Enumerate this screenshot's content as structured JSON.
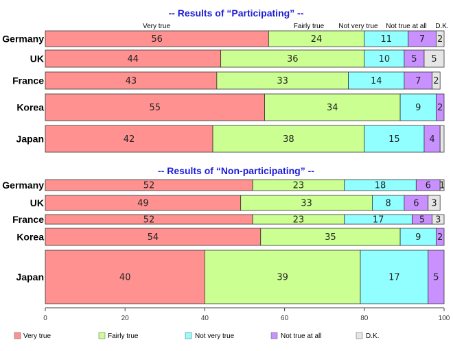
{
  "chart_data": {
    "type": "bar",
    "orientation": "horizontal",
    "stacked": true,
    "xlim": [
      0,
      100
    ],
    "x_ticks": [
      0,
      20,
      40,
      60,
      80,
      100
    ],
    "grid": false,
    "legend_placement": "bottom",
    "categories_order": [
      "Very true",
      "Fairly true",
      "Not very true",
      "Not true at all",
      "D.K."
    ],
    "colors": [
      "#ff9191",
      "#ccff91",
      "#91ffff",
      "#c891ff",
      "#e6e6e6"
    ],
    "column_headers": [
      "Very true",
      "Fairly true",
      "Not very true",
      "Not true at all",
      "D.K."
    ],
    "panels": [
      {
        "title": "-- Results of “Participating” --",
        "rows": [
          {
            "label": "Germany",
            "values": [
              56,
              24,
              11,
              7,
              2
            ]
          },
          {
            "label": "UK",
            "values": [
              44,
              36,
              10,
              5,
              5
            ]
          },
          {
            "label": "France",
            "values": [
              43,
              33,
              14,
              7,
              2
            ]
          },
          {
            "label": "Korea",
            "values": [
              55,
              34,
              9,
              2,
              0
            ]
          },
          {
            "label": "Japan",
            "values": [
              42,
              38,
              15,
              4,
              1
            ]
          }
        ],
        "shown_labels": [
          [
            "56",
            "24",
            "11",
            "7",
            "2"
          ],
          [
            "44",
            "36",
            "10",
            "5",
            "5"
          ],
          [
            "43",
            "33",
            "14",
            "7",
            "2"
          ],
          [
            "55",
            "34",
            "9",
            "2",
            ""
          ],
          [
            "42",
            "38",
            "15",
            "4",
            ""
          ]
        ]
      },
      {
        "title": "-- Results of “Non-participating” --",
        "rows": [
          {
            "label": "Germany",
            "values": [
              52,
              23,
              18,
              6,
              1
            ]
          },
          {
            "label": "UK",
            "values": [
              49,
              33,
              8,
              6,
              3
            ]
          },
          {
            "label": "France",
            "values": [
              52,
              23,
              17,
              5,
              3
            ]
          },
          {
            "label": "Korea",
            "values": [
              54,
              35,
              9,
              2,
              0
            ]
          },
          {
            "label": "Japan",
            "values": [
              40,
              39,
              17,
              5,
              0
            ]
          }
        ],
        "shown_labels": [
          [
            "52",
            "23",
            "18",
            "6",
            "1"
          ],
          [
            "49",
            "33",
            "8",
            "6",
            "3"
          ],
          [
            "52",
            "23",
            "17",
            "5",
            "3"
          ],
          [
            "54",
            "35",
            "9",
            "2",
            ""
          ],
          [
            "40",
            "39",
            "17",
            "5",
            ""
          ]
        ]
      }
    ],
    "legend": [
      "Very true",
      "Fairly true",
      "Not very true",
      "Not true at all",
      "D.K."
    ]
  }
}
